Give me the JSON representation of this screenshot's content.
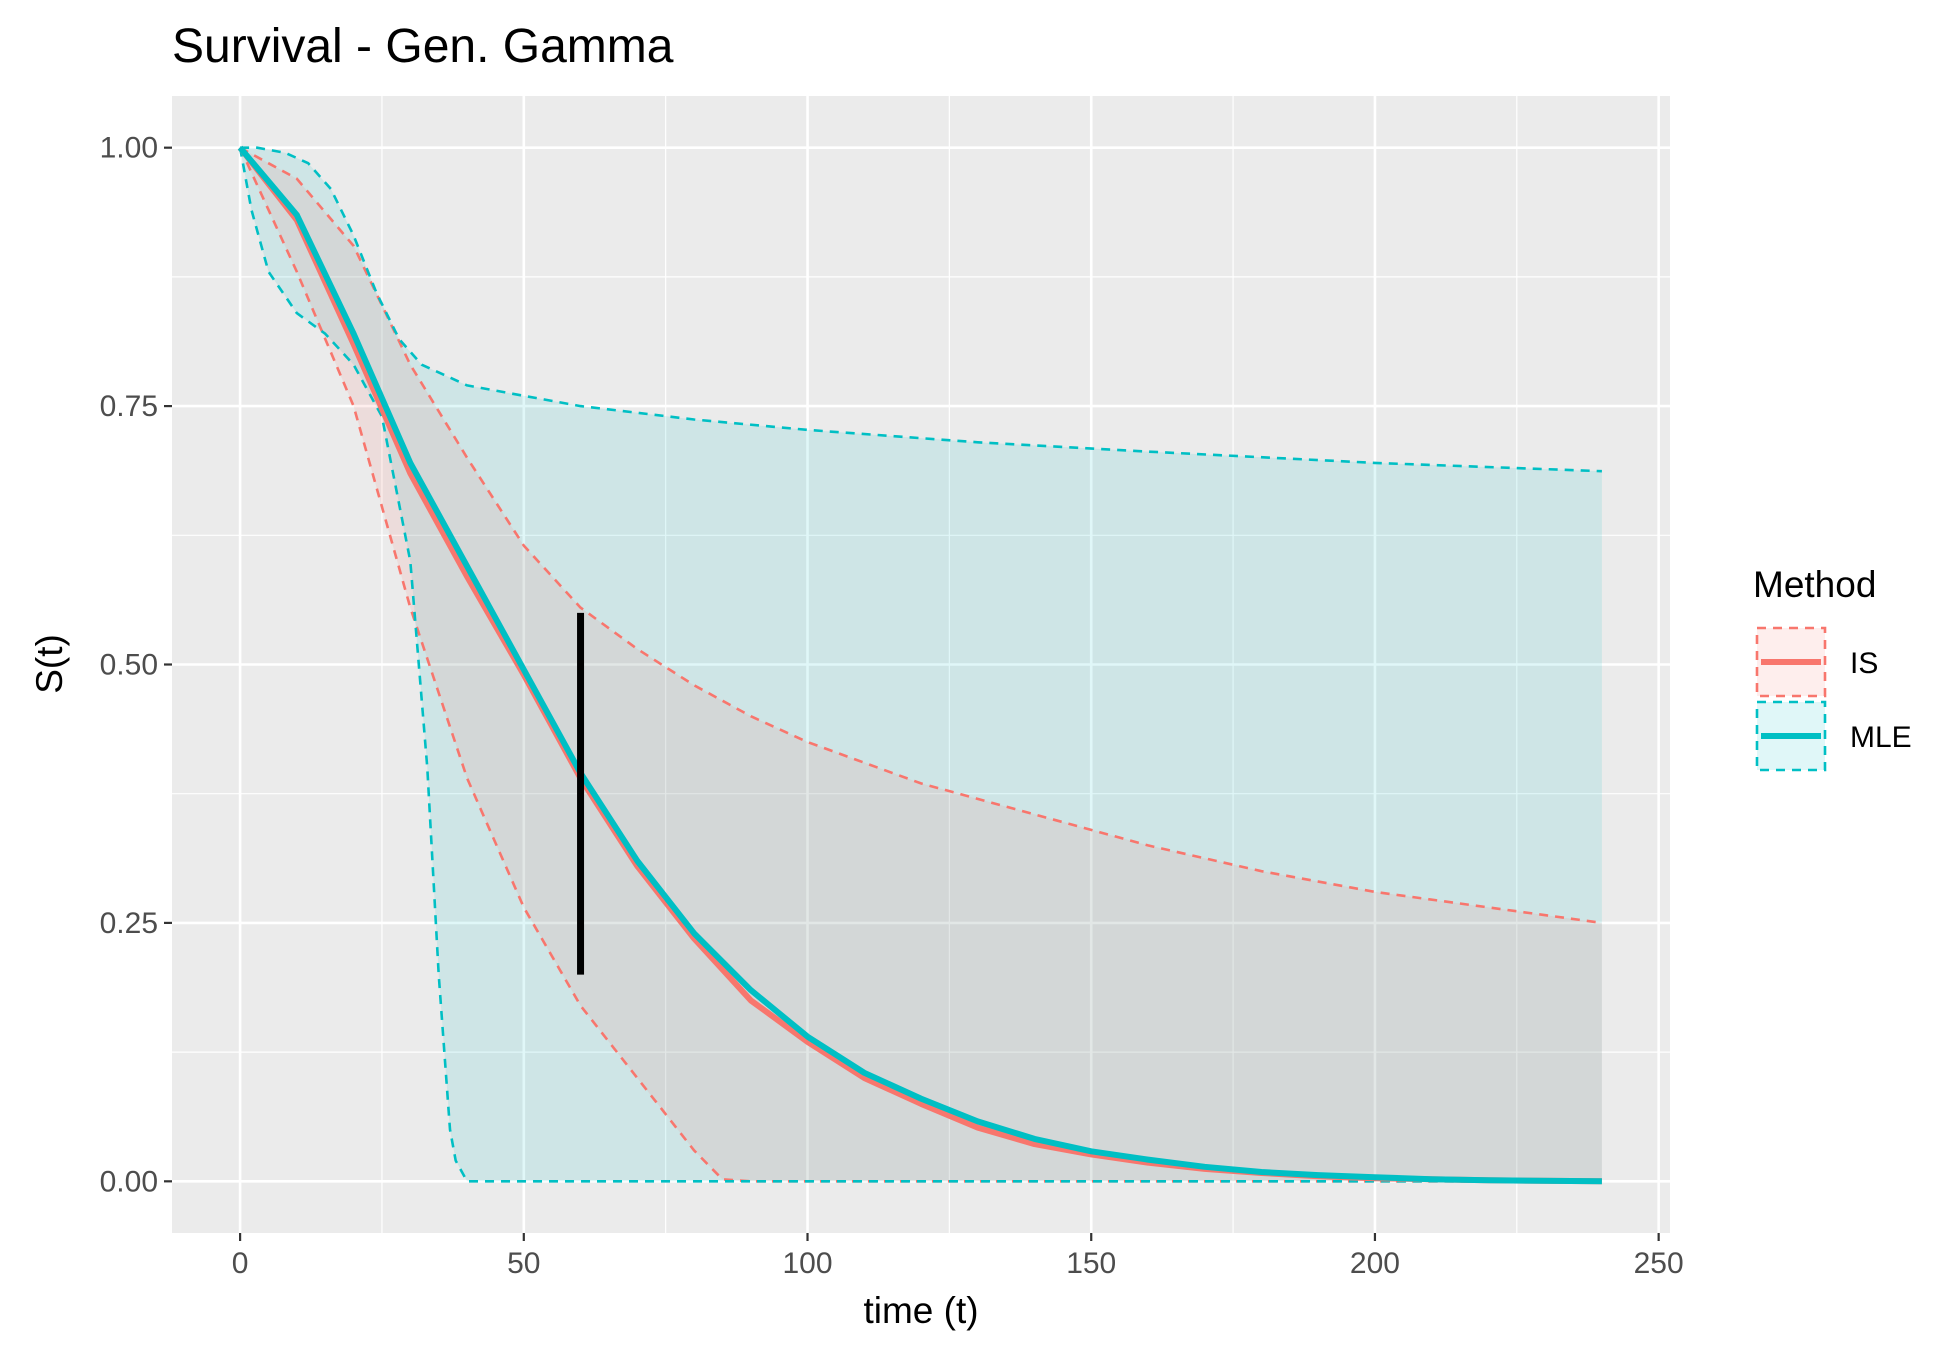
{
  "chart_data": {
    "type": "line",
    "title": "Survival - Gen. Gamma",
    "xlabel": "time (t)",
    "ylabel": "S(t)",
    "xlim": [
      -12,
      252
    ],
    "ylim": [
      -0.05,
      1.05
    ],
    "x_ticks": [
      0,
      50,
      100,
      150,
      200,
      250
    ],
    "x_tick_labels": [
      "0",
      "50",
      "100",
      "150",
      "200",
      "250"
    ],
    "y_ticks": [
      0,
      0.25,
      0.5,
      0.75,
      1.0
    ],
    "y_tick_labels": [
      "0.00",
      "0.25",
      "0.50",
      "0.75",
      "1.00"
    ],
    "grid": true,
    "legend": {
      "title": "Method",
      "position": "right"
    },
    "series": [
      {
        "name": "IS",
        "color": "#F8766D",
        "line_style": "solid",
        "band_style": "dashed",
        "estimate": [
          [
            0,
            1.0
          ],
          [
            10,
            0.93
          ],
          [
            20,
            0.81
          ],
          [
            30,
            0.685
          ],
          [
            40,
            0.585
          ],
          [
            50,
            0.49
          ],
          [
            60,
            0.39
          ],
          [
            70,
            0.305
          ],
          [
            80,
            0.235
          ],
          [
            90,
            0.175
          ],
          [
            100,
            0.135
          ],
          [
            110,
            0.1
          ],
          [
            120,
            0.075
          ],
          [
            130,
            0.052
          ],
          [
            140,
            0.036
          ],
          [
            150,
            0.026
          ],
          [
            160,
            0.018
          ],
          [
            170,
            0.012
          ],
          [
            180,
            0.008
          ],
          [
            190,
            0.005
          ],
          [
            200,
            0.003
          ],
          [
            210,
            0.002
          ],
          [
            220,
            0.001
          ],
          [
            240,
            0.0
          ]
        ],
        "lower": [
          [
            0,
            1.0
          ],
          [
            10,
            0.88
          ],
          [
            20,
            0.75
          ],
          [
            30,
            0.555
          ],
          [
            40,
            0.39
          ],
          [
            50,
            0.265
          ],
          [
            60,
            0.17
          ],
          [
            70,
            0.1
          ],
          [
            80,
            0.03
          ],
          [
            85,
            0.002
          ],
          [
            90,
            0.0
          ],
          [
            240,
            0.0
          ]
        ],
        "upper": [
          [
            0,
            1.0
          ],
          [
            10,
            0.97
          ],
          [
            20,
            0.905
          ],
          [
            30,
            0.79
          ],
          [
            40,
            0.7
          ],
          [
            50,
            0.615
          ],
          [
            60,
            0.555
          ],
          [
            70,
            0.515
          ],
          [
            80,
            0.48
          ],
          [
            90,
            0.45
          ],
          [
            100,
            0.425
          ],
          [
            120,
            0.385
          ],
          [
            140,
            0.355
          ],
          [
            160,
            0.325
          ],
          [
            180,
            0.3
          ],
          [
            200,
            0.28
          ],
          [
            220,
            0.265
          ],
          [
            240,
            0.25
          ]
        ]
      },
      {
        "name": "MLE",
        "color": "#00BFC4",
        "line_style": "solid",
        "band_style": "dashed",
        "estimate": [
          [
            0,
            1.0
          ],
          [
            10,
            0.935
          ],
          [
            20,
            0.82
          ],
          [
            30,
            0.695
          ],
          [
            40,
            0.595
          ],
          [
            50,
            0.495
          ],
          [
            60,
            0.395
          ],
          [
            70,
            0.31
          ],
          [
            80,
            0.24
          ],
          [
            90,
            0.185
          ],
          [
            100,
            0.14
          ],
          [
            110,
            0.105
          ],
          [
            120,
            0.08
          ],
          [
            130,
            0.058
          ],
          [
            140,
            0.041
          ],
          [
            150,
            0.029
          ],
          [
            160,
            0.021
          ],
          [
            170,
            0.014
          ],
          [
            180,
            0.009
          ],
          [
            190,
            0.006
          ],
          [
            200,
            0.004
          ],
          [
            210,
            0.002
          ],
          [
            220,
            0.001
          ],
          [
            240,
            0.0
          ]
        ],
        "lower": [
          [
            0,
            1.0
          ],
          [
            2,
            0.94
          ],
          [
            5,
            0.88
          ],
          [
            10,
            0.84
          ],
          [
            15,
            0.82
          ],
          [
            20,
            0.79
          ],
          [
            25,
            0.74
          ],
          [
            30,
            0.6
          ],
          [
            33,
            0.4
          ],
          [
            35,
            0.2
          ],
          [
            37,
            0.05
          ],
          [
            38,
            0.02
          ],
          [
            40,
            0.0
          ],
          [
            240,
            0.0
          ]
        ],
        "upper": [
          [
            0,
            1.0
          ],
          [
            3,
            1.0
          ],
          [
            8,
            0.995
          ],
          [
            12,
            0.985
          ],
          [
            16,
            0.96
          ],
          [
            20,
            0.915
          ],
          [
            24,
            0.86
          ],
          [
            28,
            0.815
          ],
          [
            32,
            0.79
          ],
          [
            40,
            0.77
          ],
          [
            50,
            0.76
          ],
          [
            60,
            0.75
          ],
          [
            80,
            0.737
          ],
          [
            100,
            0.727
          ],
          [
            130,
            0.715
          ],
          [
            160,
            0.706
          ],
          [
            200,
            0.695
          ],
          [
            240,
            0.687
          ]
        ]
      }
    ],
    "annotations": [
      {
        "type": "vertical-segment",
        "x": 60,
        "y_start": 0.2,
        "y_end": 0.55,
        "color": "#000000"
      }
    ]
  }
}
